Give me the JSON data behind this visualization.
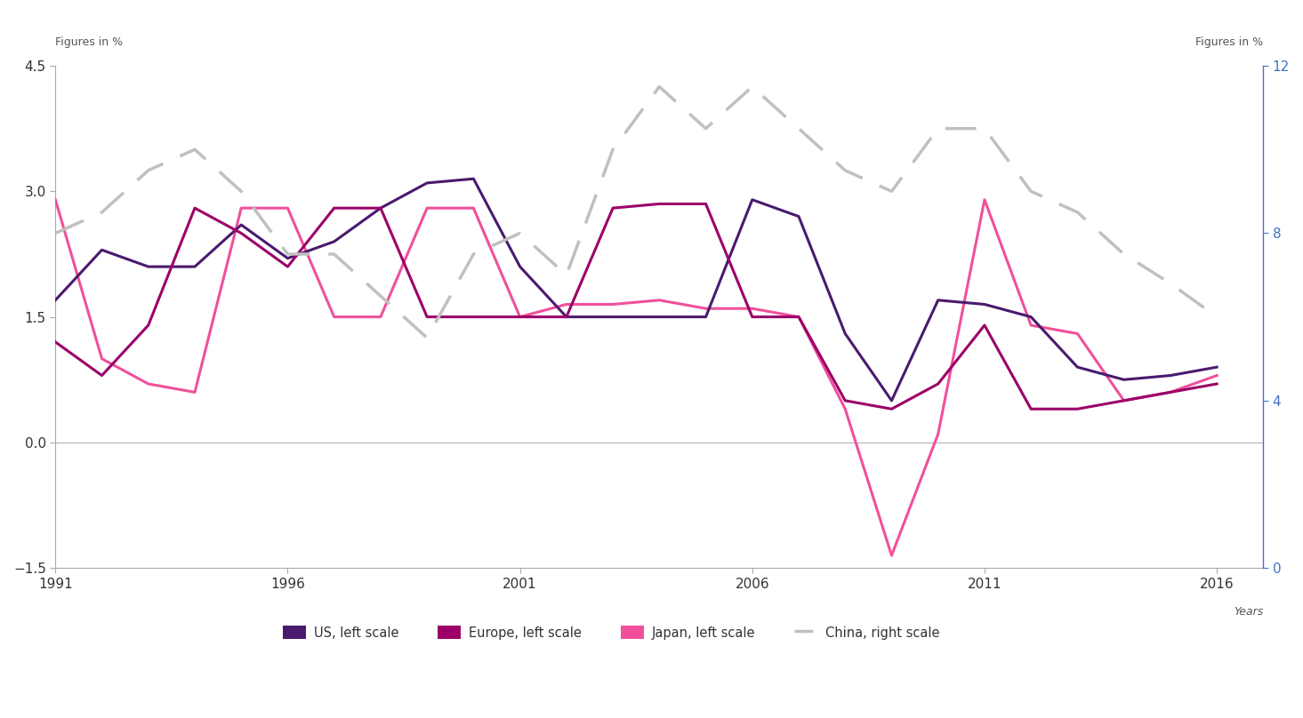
{
  "years": [
    1991,
    1992,
    1993,
    1994,
    1995,
    1996,
    1997,
    1998,
    1999,
    2000,
    2001,
    2002,
    2003,
    2004,
    2005,
    2006,
    2007,
    2008,
    2009,
    2010,
    2011,
    2012,
    2013,
    2014,
    2015,
    2016
  ],
  "US": [
    1.7,
    2.3,
    2.1,
    2.1,
    2.6,
    2.2,
    2.4,
    2.8,
    3.1,
    3.15,
    2.1,
    1.5,
    1.5,
    1.5,
    1.5,
    2.9,
    2.7,
    1.3,
    0.5,
    1.7,
    1.65,
    1.5,
    0.9,
    0.75,
    0.8,
    0.9
  ],
  "Europe": [
    1.2,
    0.8,
    1.4,
    2.8,
    2.5,
    2.1,
    2.8,
    2.8,
    1.5,
    1.5,
    1.5,
    1.5,
    2.8,
    2.85,
    2.85,
    1.5,
    1.5,
    0.5,
    0.4,
    0.7,
    1.4,
    0.4,
    0.4,
    0.5,
    0.6,
    0.7
  ],
  "Japan": [
    2.9,
    1.0,
    0.7,
    0.6,
    2.8,
    2.8,
    1.5,
    1.5,
    2.8,
    2.8,
    1.5,
    1.65,
    1.65,
    1.7,
    1.6,
    1.6,
    1.5,
    0.4,
    -1.35,
    0.1,
    2.9,
    1.4,
    1.3,
    0.5,
    0.6,
    0.8
  ],
  "China": [
    8.0,
    8.5,
    9.5,
    10.0,
    9.0,
    7.5,
    7.5,
    6.5,
    5.5,
    7.5,
    8.0,
    7.0,
    10.0,
    11.5,
    10.5,
    11.5,
    10.5,
    9.5,
    9.0,
    10.5,
    10.5,
    9.0,
    8.5,
    7.5,
    6.8,
    6.0
  ],
  "left_ylim": [
    -1.5,
    4.5
  ],
  "right_ylim": [
    0,
    12
  ],
  "left_yticks": [
    -1.5,
    0,
    1.5,
    3,
    4.5
  ],
  "right_yticks": [
    0,
    4,
    8,
    12
  ],
  "xticks": [
    1991,
    1996,
    2001,
    2006,
    2011,
    2016
  ],
  "color_US": "#4a1a6e",
  "color_Europe": "#9c0068",
  "color_Japan": "#f0509a",
  "color_China": "#c0c0c0",
  "label_US": "US, left scale",
  "label_Europe": "Europe, left scale",
  "label_Japan": "Japan, left scale",
  "label_China": "China, right scale",
  "figures_label": "Figures in %",
  "years_label": "Years",
  "right_tick_color": "#4472c4",
  "axis_color": "#aaaaaa"
}
